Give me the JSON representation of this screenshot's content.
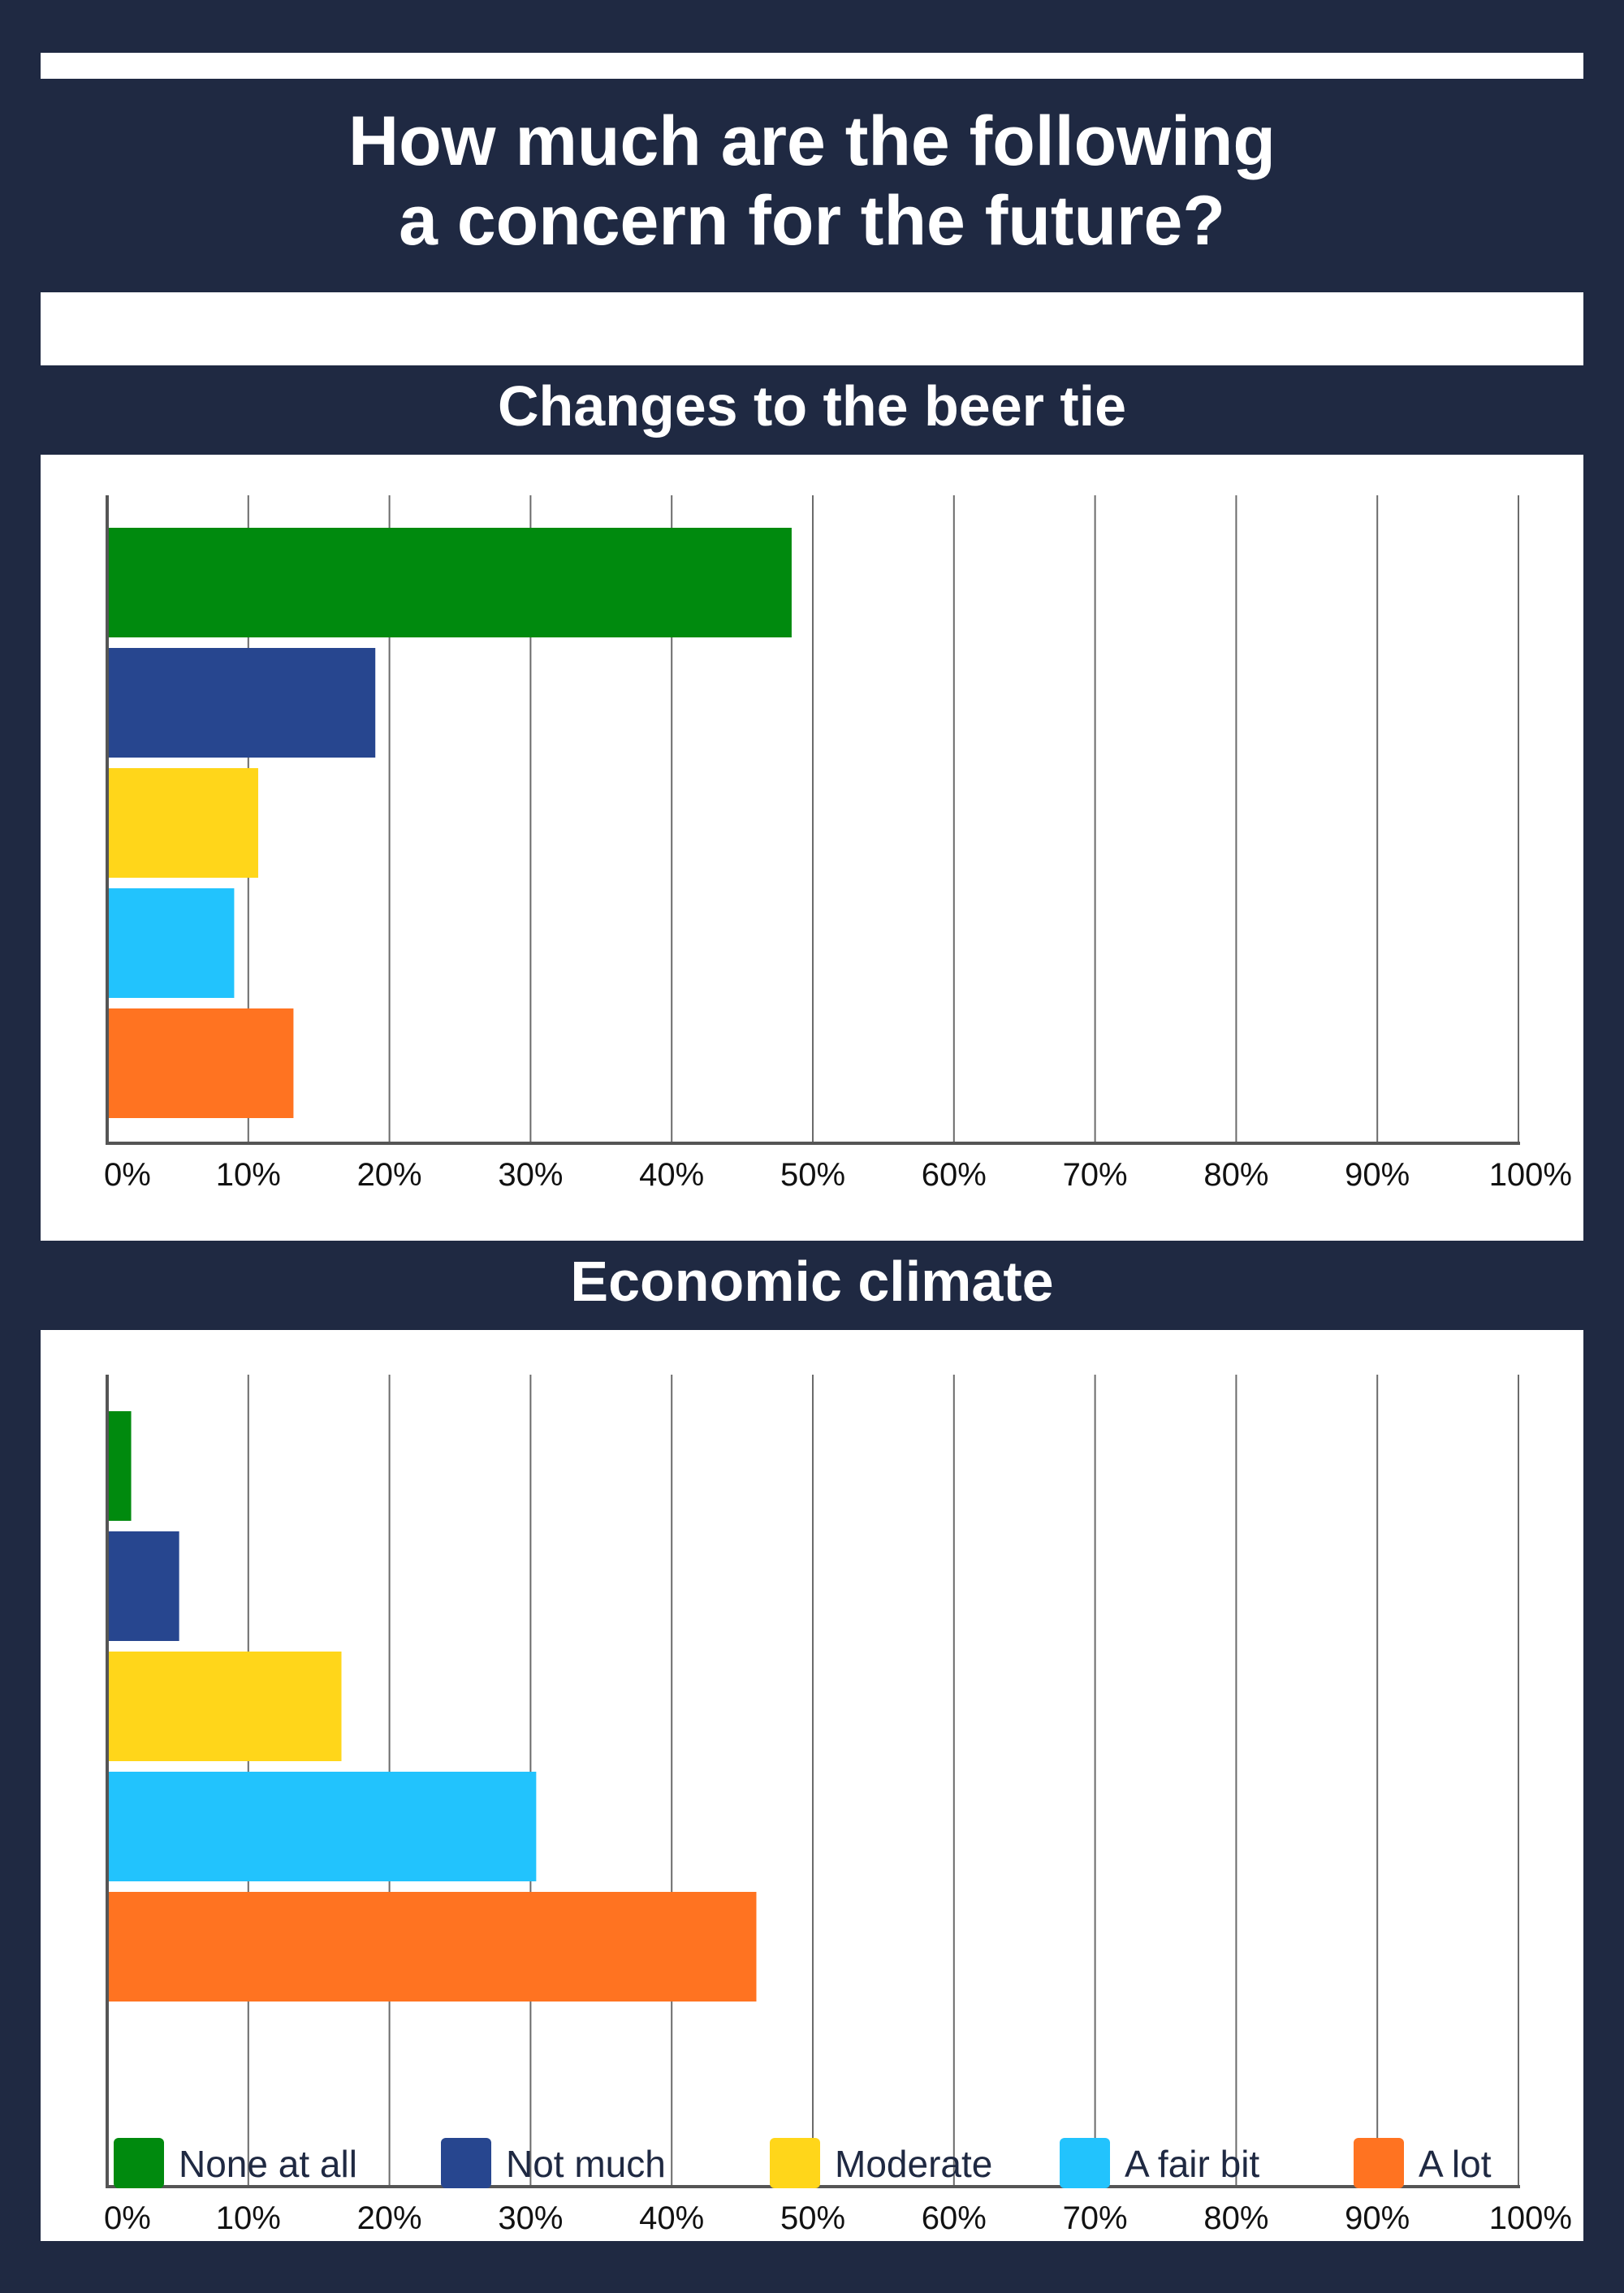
{
  "title": "How much are the following\na concern for the future?",
  "legend": {
    "items": [
      {
        "label": "None at all",
        "color": "#008a0e"
      },
      {
        "label": "Not much",
        "color": "#27468f"
      },
      {
        "label": "Moderate",
        "color": "#ffd61a"
      },
      {
        "label": "A fair bit",
        "color": "#22c3fd"
      },
      {
        "label": "A lot",
        "color": "#ff7321"
      }
    ]
  },
  "chart_data": [
    {
      "type": "bar",
      "orientation": "horizontal",
      "title": "Changes to the beer tie",
      "categories": [
        "None at all",
        "Not much",
        "Moderate",
        "A fair bit",
        "A lot"
      ],
      "values": [
        48.5,
        19,
        10.7,
        9,
        13.2
      ],
      "colors": [
        "#008a0e",
        "#27468f",
        "#ffd61a",
        "#22c3fd",
        "#ff7321"
      ],
      "xlim": [
        0,
        100
      ],
      "ticks": [
        "0%",
        "10%",
        "20%",
        "30%",
        "40%",
        "50%",
        "60%",
        "70%",
        "80%",
        "90%",
        "100%"
      ],
      "grid": true
    },
    {
      "type": "bar",
      "orientation": "horizontal",
      "title": "Economic climate",
      "categories": [
        "None at all",
        "Not much",
        "Moderate",
        "A fair bit",
        "A lot"
      ],
      "values": [
        1.7,
        5.1,
        16.6,
        30.4,
        46
      ],
      "colors": [
        "#008a0e",
        "#27468f",
        "#ffd61a",
        "#22c3fd",
        "#ff7321"
      ],
      "xlim": [
        0,
        100
      ],
      "ticks": [
        "0%",
        "10%",
        "20%",
        "30%",
        "40%",
        "50%",
        "60%",
        "70%",
        "80%",
        "90%",
        "100%"
      ],
      "grid": true
    }
  ]
}
